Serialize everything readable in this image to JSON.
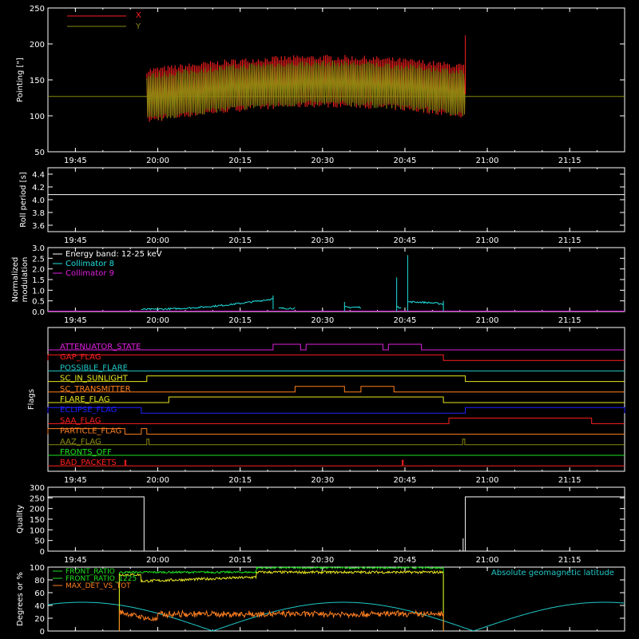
{
  "colors": {
    "background": "#000000",
    "axes": "#ffffff",
    "x_series": "#ff2020",
    "y_series": "#8a8a10",
    "collimator8": "#20e0e0",
    "collimator9": "#e020e0",
    "green": "#20e020",
    "yellow": "#e8e820",
    "orange": "#ff8020",
    "cyan": "#20c8c8"
  },
  "time_ticks": [
    "19:45",
    "20:00",
    "20:15",
    "20:30",
    "20:45",
    "21:00",
    "21:15"
  ],
  "time_range_minutes": [
    1180,
    1285
  ],
  "chart_data": [
    {
      "type": "line",
      "id": "pointing",
      "ylabel": "Pointing [\"]",
      "ylim": [
        50,
        250
      ],
      "yticks": [
        "50",
        "100",
        "150",
        "200",
        "250"
      ],
      "series": [
        {
          "name": "X",
          "envelope_start_minute": 1198,
          "envelope_end_minute": 1256,
          "min_range": [
            80,
            115
          ],
          "max_range": [
            160,
            220
          ]
        },
        {
          "name": "Y",
          "envelope_start_minute": 1198,
          "envelope_end_minute": 1256,
          "min_range": [
            85,
            110
          ],
          "max_range": [
            155,
            175
          ]
        }
      ],
      "reference_line": 127
    },
    {
      "type": "line",
      "id": "roll",
      "ylabel": "Roll period [s]",
      "ylim": [
        3.5,
        4.5
      ],
      "yticks": [
        "3.6",
        "3.8",
        "4.0",
        "4.2",
        "4.4"
      ],
      "series": [
        {
          "name": "",
          "value": 4.08
        }
      ]
    },
    {
      "type": "line",
      "id": "modulation",
      "ylabel_lines": [
        "Normalized",
        "modulation"
      ],
      "ylim": [
        0,
        3.0
      ],
      "yticks": [
        "0.0",
        "0.5",
        "1.0",
        "1.5",
        "2.0",
        "2.5",
        "3.0"
      ],
      "legend": [
        "Energy band: 12-25 keV",
        "Collimator 8",
        "Collimator 9"
      ],
      "series": [
        {
          "name": "Collimator 8"
        },
        {
          "name": "Collimator 9"
        }
      ]
    },
    {
      "type": "line",
      "id": "flags",
      "ylabel": "Flags",
      "flags": [
        {
          "label": "ATTENUATOR_STATE",
          "color": "#e020e0"
        },
        {
          "label": "GAP_FLAG",
          "color": "#ff2020"
        },
        {
          "label": "POSSIBLE_FLARE",
          "color": "#20c8c8"
        },
        {
          "label": "SC_IN_SUNLIGHT",
          "color": "#e8e820"
        },
        {
          "label": "SC_TRANSMITTER",
          "color": "#ff8020"
        },
        {
          "label": "FLARE_FLAG",
          "color": "#e8e820"
        },
        {
          "label": "ECLIPSE_FLAG",
          "color": "#2020ff"
        },
        {
          "label": "SAA_FLAG",
          "color": "#ff2020"
        },
        {
          "label": "PARTICLE_FLAG",
          "color": "#ff8020"
        },
        {
          "label": "AAZ_FLAG",
          "color": "#8a8a10"
        },
        {
          "label": "FRONTS_OFF",
          "color": "#20e020"
        },
        {
          "label": "BAD_PACKETS",
          "color": "#ff2020"
        }
      ]
    },
    {
      "type": "line",
      "id": "quality",
      "ylabel": "Quality",
      "ylim": [
        0,
        300
      ],
      "yticks": [
        "0",
        "50",
        "100",
        "150",
        "200",
        "250",
        "300"
      ]
    },
    {
      "type": "line",
      "id": "degrees",
      "ylabel": "Degrees or %",
      "ylim": [
        0,
        100
      ],
      "yticks": [
        "0",
        "20",
        "40",
        "60",
        "80",
        "100"
      ],
      "legend": [
        "FRONT_RATIO",
        "FRONT_RATIO_1225",
        "MAX_DET_VS_TOT"
      ],
      "right_label": "Absolute geomagnetic latitude"
    }
  ]
}
